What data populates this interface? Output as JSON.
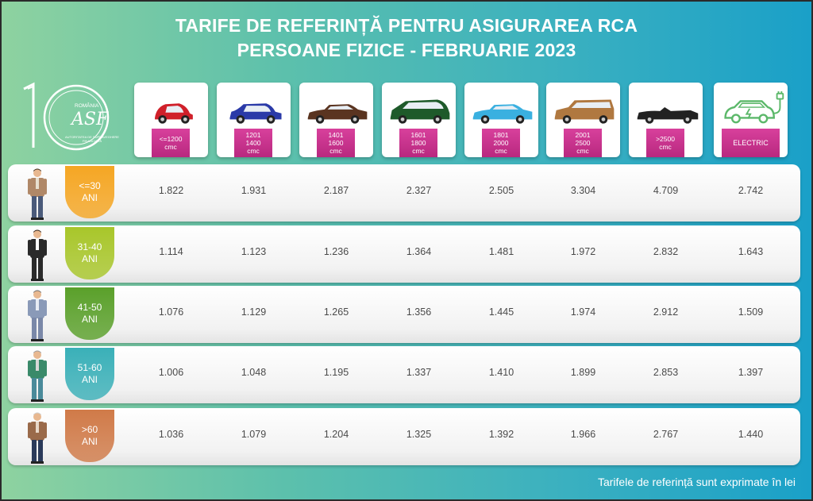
{
  "title": {
    "line1": "TARIFE DE REFERINȚĂ PENTRU ASIGURAREA RCA",
    "line2": "PERSOANE FIZICE - FEBRUARIE 2023"
  },
  "logo": {
    "number": "10",
    "top_text": "ROMÂNIA",
    "initials": "ASF",
    "arc_text": "AUTORITATEA DE SUPRAVEGHERE FINANCIARĂ"
  },
  "categories": [
    {
      "lines": [
        "<=1200",
        "cmc"
      ],
      "car_color": "#d0202a",
      "car_icon": "small-car-icon"
    },
    {
      "lines": [
        "1201",
        "1400",
        "cmc"
      ],
      "car_color": "#2a3aa8",
      "car_icon": "hatchback-car-icon"
    },
    {
      "lines": [
        "1401",
        "1600",
        "cmc"
      ],
      "car_color": "#5a3420",
      "car_icon": "sedan-car-icon"
    },
    {
      "lines": [
        "1601",
        "1800",
        "cmc"
      ],
      "car_color": "#1e5a2a",
      "car_icon": "minivan-car-icon"
    },
    {
      "lines": [
        "1801",
        "2000",
        "cmc"
      ],
      "car_color": "#3ab0e0",
      "car_icon": "sedan-car-icon"
    },
    {
      "lines": [
        "2001",
        "2500",
        "cmc"
      ],
      "car_color": "#b07840",
      "car_icon": "estate-car-icon"
    },
    {
      "lines": [
        ">2500",
        "cmc"
      ],
      "car_color": "#222222",
      "car_icon": "convertible-car-icon"
    },
    {
      "lines": [
        "ELECTRIC"
      ],
      "car_color": "#5cb86a",
      "car_icon": "electric-car-icon"
    }
  ],
  "rows": [
    {
      "age": [
        "<=30",
        "ANI"
      ],
      "age_color": "#f5a623",
      "values": [
        "1.822",
        "1.931",
        "2.187",
        "2.327",
        "2.505",
        "3.304",
        "4.709",
        "2.742"
      ]
    },
    {
      "age": [
        "31-40",
        "ANI"
      ],
      "age_color": "#a8c62a",
      "values": [
        "1.114",
        "1.123",
        "1.236",
        "1.364",
        "1.481",
        "1.972",
        "2.832",
        "1.643"
      ]
    },
    {
      "age": [
        "41-50",
        "ANI"
      ],
      "age_color": "#5aa02a",
      "values": [
        "1.076",
        "1.129",
        "1.265",
        "1.356",
        "1.445",
        "1.974",
        "2.912",
        "1.509"
      ]
    },
    {
      "age": [
        "51-60",
        "ANI"
      ],
      "age_color": "#3ab0b8",
      "values": [
        "1.006",
        "1.048",
        "1.195",
        "1.337",
        "1.410",
        "1.899",
        "2.853",
        "1.397"
      ]
    },
    {
      "age": [
        ">60",
        "ANI"
      ],
      "age_color": "#d07a48",
      "values": [
        "1.036",
        "1.079",
        "1.204",
        "1.325",
        "1.392",
        "1.966",
        "2.767",
        "1.440"
      ]
    }
  ],
  "footnote": "Tarifele de referință sunt exprimate în lei"
}
